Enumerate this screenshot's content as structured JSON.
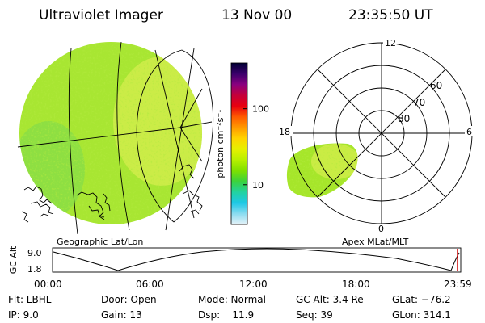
{
  "header": {
    "instrument": "Ultraviolet Imager",
    "date": "13 Nov 00",
    "time": "23:35:50 UT"
  },
  "colorbar": {
    "unit_label": "photon cm⁻²s⁻¹",
    "scale": "log",
    "range": [
      3,
      400
    ],
    "ticks": [
      {
        "value": 100,
        "label": "100"
      },
      {
        "value": 10,
        "label": "10"
      }
    ],
    "colors": [
      "#000033",
      "#3a006b",
      "#8a0080",
      "#c4003a",
      "#e8000f",
      "#ff5a00",
      "#ff9a00",
      "#ffd400",
      "#e6f000",
      "#b8f000",
      "#7ee000",
      "#3cd23c",
      "#22d2a0",
      "#1ec8e6",
      "#8adcf0",
      "#e6f2f8"
    ]
  },
  "geo_panel": {
    "caption": "Geographic Lat/Lon",
    "fill_color": "#a8e632"
  },
  "polar_panel": {
    "caption": "Apex MLat/MLT",
    "mlt_labels": {
      "top": "12",
      "left": "18",
      "right": "6",
      "bottom": "0"
    },
    "lat_labels": [
      "60",
      "70",
      "80"
    ],
    "fill_color": "#a6e62a"
  },
  "altitude_strip": {
    "ylabel": "GC Alt",
    "ytick_labels": [
      "9.0",
      "1.8"
    ],
    "x_tick_labels": [
      "00:00",
      "06:00",
      "12:00",
      "18:00",
      "23:59"
    ],
    "marker_color": "#cc0000"
  },
  "info": {
    "filter": "Flt: LBHL",
    "ip": "IP:  9.0",
    "door": "Door: Open",
    "gain": "Gain: 13",
    "mode": "Mode: Normal",
    "dsp": "Dsp:    11.9",
    "gc_alt": "GC Alt: 3.4 Re",
    "seq": "Seq: 39",
    "glat": "GLat: −76.2",
    "glon": "GLon: 314.1"
  }
}
